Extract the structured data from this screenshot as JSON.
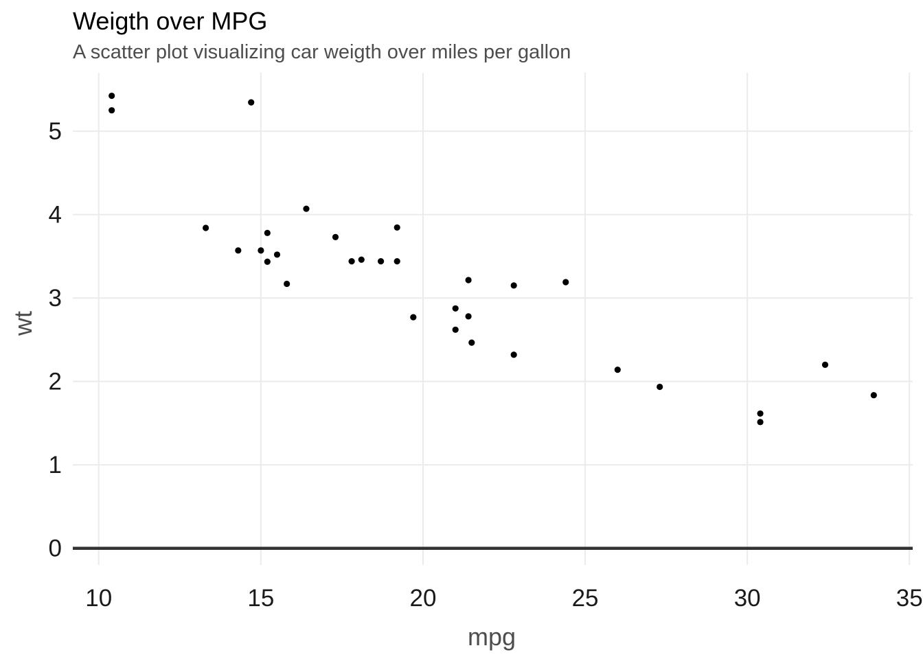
{
  "chart_data": {
    "type": "scatter",
    "title": "Weigth over MPG",
    "subtitle": "A scatter plot visualizing car weigth over miles per gallon",
    "xlabel": "mpg",
    "ylabel": "wt",
    "xlim": [
      9.2,
      35.1
    ],
    "ylim": [
      -0.2,
      5.7
    ],
    "xticks": [
      10,
      15,
      20,
      25,
      30,
      35
    ],
    "yticks": [
      0,
      1,
      2,
      3,
      4,
      5
    ],
    "grid": true,
    "reference_line": {
      "y": 0,
      "color": "#333333"
    },
    "point_color": "#000000",
    "points": [
      {
        "x": 21.0,
        "y": 2.62
      },
      {
        "x": 21.0,
        "y": 2.875
      },
      {
        "x": 22.8,
        "y": 2.32
      },
      {
        "x": 21.4,
        "y": 3.215
      },
      {
        "x": 18.7,
        "y": 3.44
      },
      {
        "x": 18.1,
        "y": 3.46
      },
      {
        "x": 14.3,
        "y": 3.57
      },
      {
        "x": 24.4,
        "y": 3.19
      },
      {
        "x": 22.8,
        "y": 3.15
      },
      {
        "x": 19.2,
        "y": 3.44
      },
      {
        "x": 17.8,
        "y": 3.44
      },
      {
        "x": 16.4,
        "y": 4.07
      },
      {
        "x": 17.3,
        "y": 3.73
      },
      {
        "x": 15.2,
        "y": 3.78
      },
      {
        "x": 10.4,
        "y": 5.25
      },
      {
        "x": 10.4,
        "y": 5.424
      },
      {
        "x": 14.7,
        "y": 5.345
      },
      {
        "x": 32.4,
        "y": 2.2
      },
      {
        "x": 30.4,
        "y": 1.615
      },
      {
        "x": 33.9,
        "y": 1.835
      },
      {
        "x": 21.5,
        "y": 2.465
      },
      {
        "x": 15.5,
        "y": 3.52
      },
      {
        "x": 15.2,
        "y": 3.435
      },
      {
        "x": 13.3,
        "y": 3.84
      },
      {
        "x": 19.2,
        "y": 3.845
      },
      {
        "x": 27.3,
        "y": 1.935
      },
      {
        "x": 26.0,
        "y": 2.14
      },
      {
        "x": 30.4,
        "y": 1.513
      },
      {
        "x": 15.8,
        "y": 3.17
      },
      {
        "x": 19.7,
        "y": 2.77
      },
      {
        "x": 15.0,
        "y": 3.57
      },
      {
        "x": 21.4,
        "y": 2.78
      }
    ]
  }
}
